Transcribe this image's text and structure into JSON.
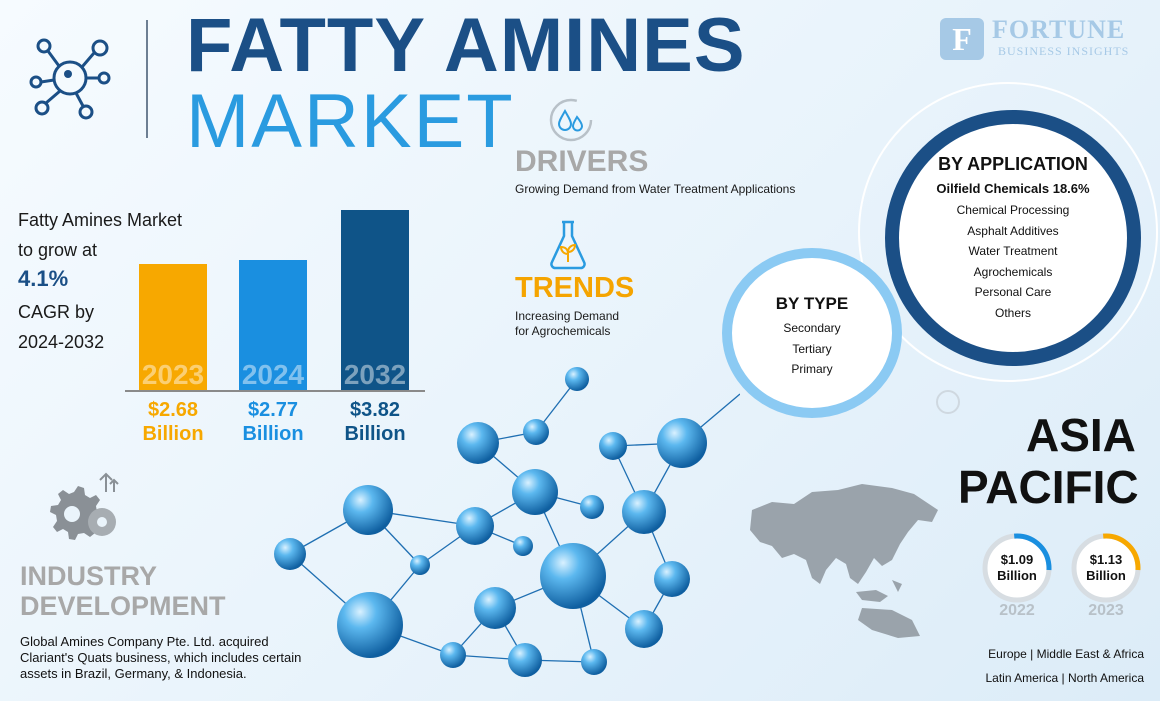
{
  "title": {
    "line1": "FATTY AMINES",
    "line2": "MARKET"
  },
  "logo": {
    "name": "FORTUNE",
    "sub": "BUSINESS INSIGHTS"
  },
  "cagr": {
    "line1": "Fatty Amines Market",
    "line2": "to grow at",
    "value": "4.1%",
    "line3": "CAGR by",
    "line4": "2024-2032"
  },
  "chart_data": {
    "type": "bar",
    "categories": [
      "2023",
      "2024",
      "2032"
    ],
    "values": [
      2.68,
      2.77,
      3.82
    ],
    "value_labels": [
      "$2.68",
      "$2.77",
      "$3.82"
    ],
    "unit": "Billion",
    "colors": [
      "#f7a800",
      "#1a8fe0",
      "#0f5488"
    ]
  },
  "drivers": {
    "title": "DRIVERS",
    "text": "Growing Demand from Water Treatment Applications"
  },
  "trends": {
    "title": "TRENDS",
    "line1": "Increasing Demand",
    "line2": "for Agrochemicals"
  },
  "by_application": {
    "title": "BY APPLICATION",
    "highlight": "Oilfield Chemicals 18.6%",
    "items": [
      "Chemical Processing",
      "Asphalt Additives",
      "Water Treatment",
      "Agrochemicals",
      "Personal Care",
      "Others"
    ]
  },
  "by_type": {
    "title": "BY TYPE",
    "items": [
      "Secondary",
      "Tertiary",
      "Primary"
    ]
  },
  "region": {
    "line1": "ASIA",
    "line2": "PACIFIC",
    "stats": [
      {
        "value": "$1.09",
        "unit": "Billion",
        "year": "2022",
        "color": "#1a8fe0"
      },
      {
        "value": "$1.13",
        "unit": "Billion",
        "year": "2023",
        "color": "#f7a800"
      }
    ],
    "others_row1": "Europe  |  Middle East & Africa",
    "others_row2": "Latin America  |  North America"
  },
  "industry": {
    "title1": "INDUSTRY",
    "title2": "DEVELOPMENT",
    "text": "Global Amines Company Pte. Ltd. acquired Clariant's Quats business, which includes certain assets in Brazil, Germany, & Indonesia."
  },
  "icons": [
    "molecule-icon",
    "water-drops-icon",
    "flask-plant-icon",
    "gears-icon",
    "asia-map-icon"
  ]
}
